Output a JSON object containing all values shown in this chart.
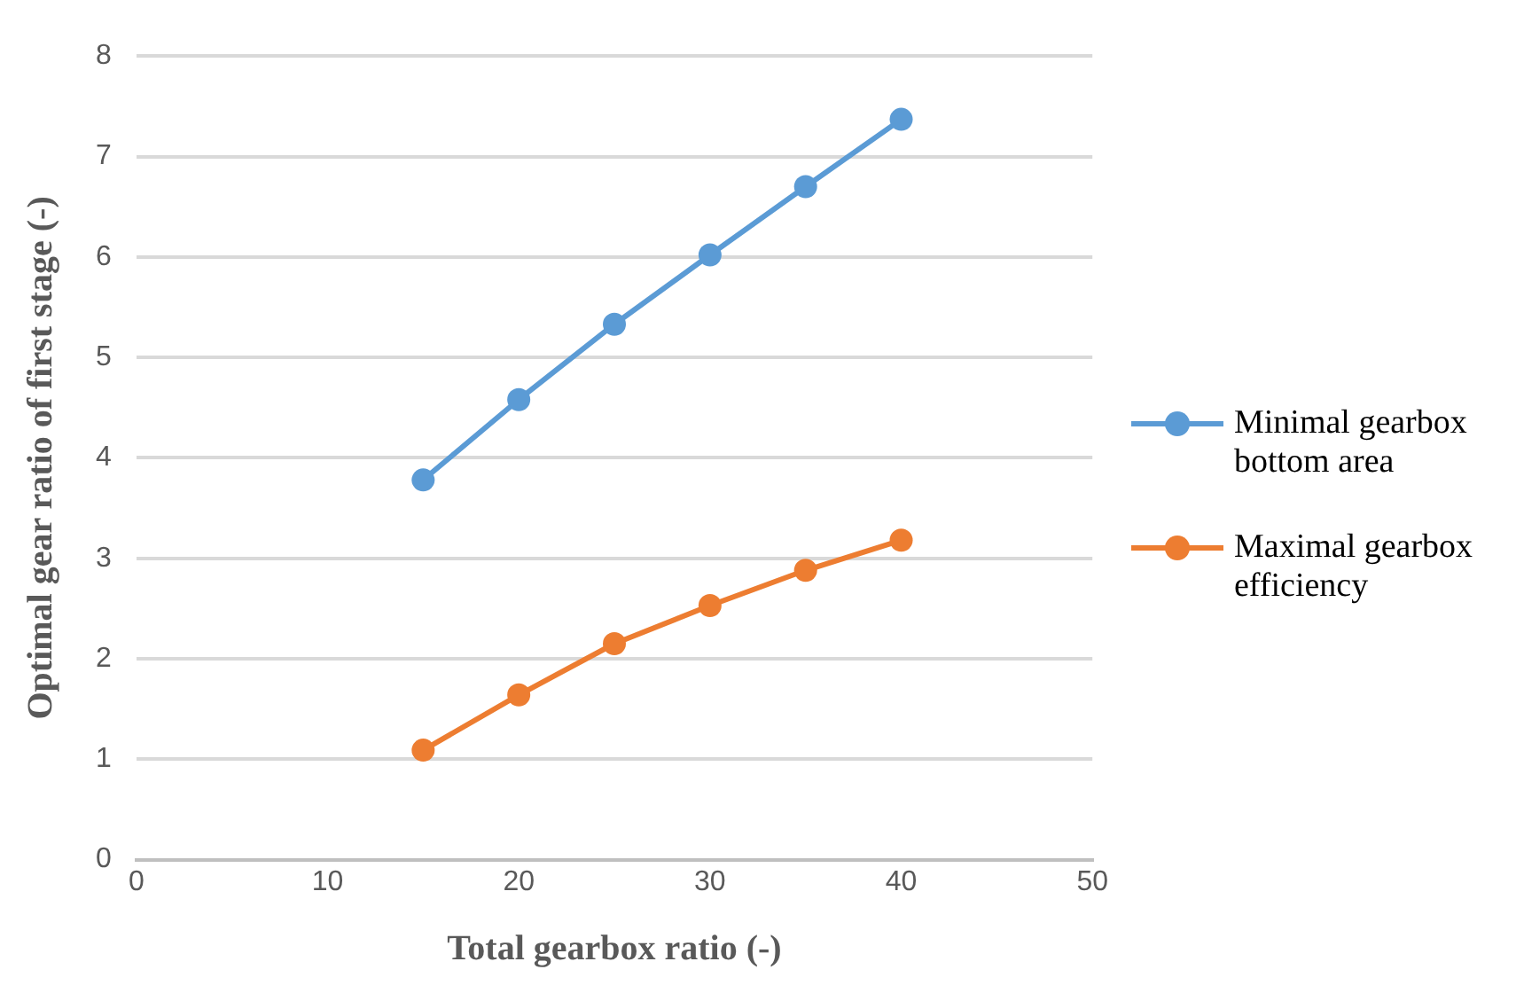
{
  "chart_data": {
    "type": "line",
    "xlabel": "Total gearbox ratio (-)",
    "ylabel": "Optimal gear ratio of first stage (-)",
    "x": [
      15,
      20,
      25,
      30,
      35,
      40
    ],
    "series": [
      {
        "name": "Minimal gearbox bottom area",
        "color": "#5b9bd5",
        "values": [
          3.78,
          4.58,
          5.33,
          6.02,
          6.7,
          7.37
        ]
      },
      {
        "name": "Maximal gearbox efficiency",
        "color": "#ed7d31",
        "values": [
          1.09,
          1.64,
          2.15,
          2.53,
          2.88,
          3.18
        ]
      }
    ],
    "xlim": [
      0,
      50
    ],
    "xticks": [
      0,
      10,
      20,
      30,
      40,
      50
    ],
    "ylim": [
      0,
      8
    ],
    "yticks": [
      0,
      1,
      2,
      3,
      4,
      5,
      6,
      7,
      8
    ],
    "grid": "y",
    "legend": "right",
    "marker": "circle",
    "line_style": "solid"
  }
}
